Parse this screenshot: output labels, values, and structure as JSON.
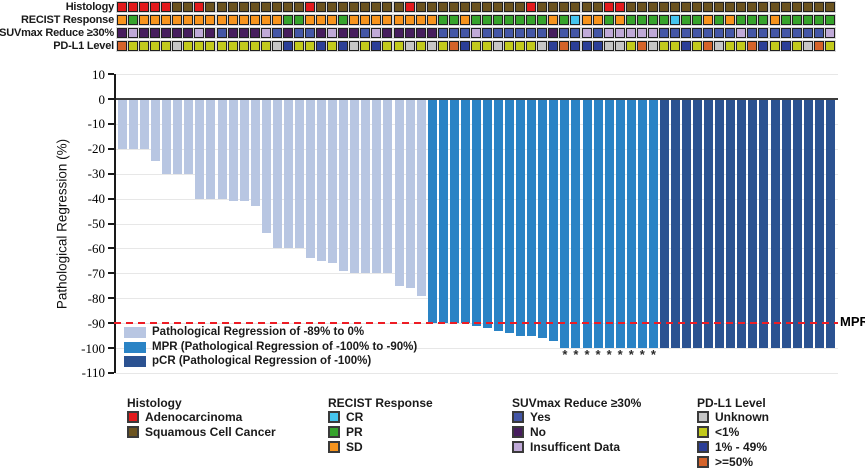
{
  "tracks": {
    "labels": [
      "Histology",
      "RECIST Response",
      "SUVmax Reduce ≥30%",
      "PD-L1 Level"
    ],
    "keys": [
      "histology",
      "recist",
      "suvmax",
      "pdl1"
    ],
    "code_maps": {
      "histology": {
        "A": "Adenocarcinoma",
        "S": "Squamous Cell Cancer"
      },
      "recist": {
        "C": "CR",
        "P": "PR",
        "S": "SD"
      },
      "suvmax": {
        "Y": "Yes",
        "N": "No",
        "I": "Insufficent Data"
      },
      "pdl1": {
        "U": "Unknown",
        "L": "<1%",
        "M": "1% - 49%",
        "H": ">=50%"
      }
    },
    "values": {
      "histology": "AAAAASSASSSSSSSSSASSSSSSSSASSSSSSSSSSASSSSSSAASSSSSSSSSSSSSSSSSSS",
      "recist": "SPSSSSSSSSSSSSSPPSSSPSSSSSSSSPPSPPPPPPPSPCSSPSPPPPCPPSPSPPPSPPPPP",
      "suvmax": "NINNNNNINYNNNIYNYYNINNYINNNNNYYYIYYYYYYNYYIYIIIIIYYYYYYYIYYYYYYYI",
      "pdl1": "HLLLLULLLLLLLLUMLLMLMULMLLULULHMLLULLLUMHMMMUULHULLMLHULLHMLMLUHL"
    }
  },
  "chart_data": {
    "type": "bar",
    "subtype": "waterfall",
    "n_patients": 65,
    "x_meaning": "individual patients (unlabeled columns)",
    "values": [
      -20,
      -20,
      -20,
      -25,
      -30,
      -30,
      -30,
      -40,
      -40,
      -40,
      -41,
      -41,
      -43,
      -54,
      -60,
      -60,
      -60,
      -64,
      -65,
      -66,
      -69,
      -70,
      -70,
      -70,
      -70,
      -75,
      -76,
      -79,
      -90,
      -90,
      -90,
      -90,
      -91,
      -92,
      -93,
      -94,
      -95,
      -95,
      -96,
      -97,
      -100,
      -100,
      -100,
      -100,
      -100,
      -100,
      -100,
      -100,
      -100,
      -100,
      -100,
      -100,
      -100,
      -100,
      -100,
      -100,
      -100,
      -100,
      -100,
      -100,
      -100,
      -100,
      -100,
      -100,
      -100
    ],
    "group_counts": {
      "light": 28,
      "mpr": 21,
      "pcr": 16
    },
    "ylabel": "Pathological Regression (%)",
    "yticks": [
      10,
      0,
      -10,
      -20,
      -30,
      -40,
      -50,
      -60,
      -70,
      -80,
      -90,
      -100,
      -110
    ],
    "ylim": [
      -110,
      10
    ],
    "grid": "horizontal",
    "mpr_line": {
      "y": -90,
      "label": "MPR",
      "style": "red-dashed"
    },
    "annotations": {
      "asterisk_marker": "*",
      "columns": [
        41,
        42,
        43,
        44,
        45,
        46,
        47,
        48,
        49
      ]
    }
  },
  "legend_plot": [
    {
      "key": "light",
      "label": "Pathological Regression of -89% to 0%"
    },
    {
      "key": "mpr",
      "label": "MPR (Pathological Regression of -100% to -90%)"
    },
    {
      "key": "pcr",
      "label": "pCR (Pathological Regression of -100%)"
    }
  ],
  "legend_bottom": [
    {
      "title": "Histology",
      "color_key": "histology",
      "items": [
        "Adenocarcinoma",
        "Squamous Cell Cancer"
      ]
    },
    {
      "title": "RECIST Response",
      "color_key": "recist",
      "items": [
        "CR",
        "PR",
        "SD"
      ]
    },
    {
      "title": "SUVmax Reduce ≥30%",
      "color_key": "suvmax",
      "items": [
        "Yes",
        "No",
        "Insufficent Data"
      ]
    },
    {
      "title": "PD-L1 Level",
      "color_key": "pdl1",
      "items": [
        "Unknown",
        "<1%",
        "1% - 49%",
        ">=50%"
      ]
    }
  ],
  "colors": {
    "bar": {
      "light": "#b8c6e2",
      "mpr": "#2a83c5",
      "pcr": "#2b5291"
    },
    "mpr_line": "#ed1c24",
    "zero_line": "#3c3c3c",
    "grid": "#e7e7e7",
    "histology": {
      "Adenocarcinoma": "#e31a1c",
      "Squamous Cell Cancer": "#6b531f"
    },
    "recist": {
      "CR": "#45c5ef",
      "PR": "#36a32c",
      "SD": "#f7941d"
    },
    "suvmax": {
      "Yes": "#4456a6",
      "No": "#471d5e",
      "Insufficent Data": "#c0aad8"
    },
    "pdl1": {
      "Unknown": "#c6c6c6",
      "<1%": "#c2ca1c",
      "1% - 49%": "#2b3e97",
      ">=50%": "#d4632a"
    }
  }
}
